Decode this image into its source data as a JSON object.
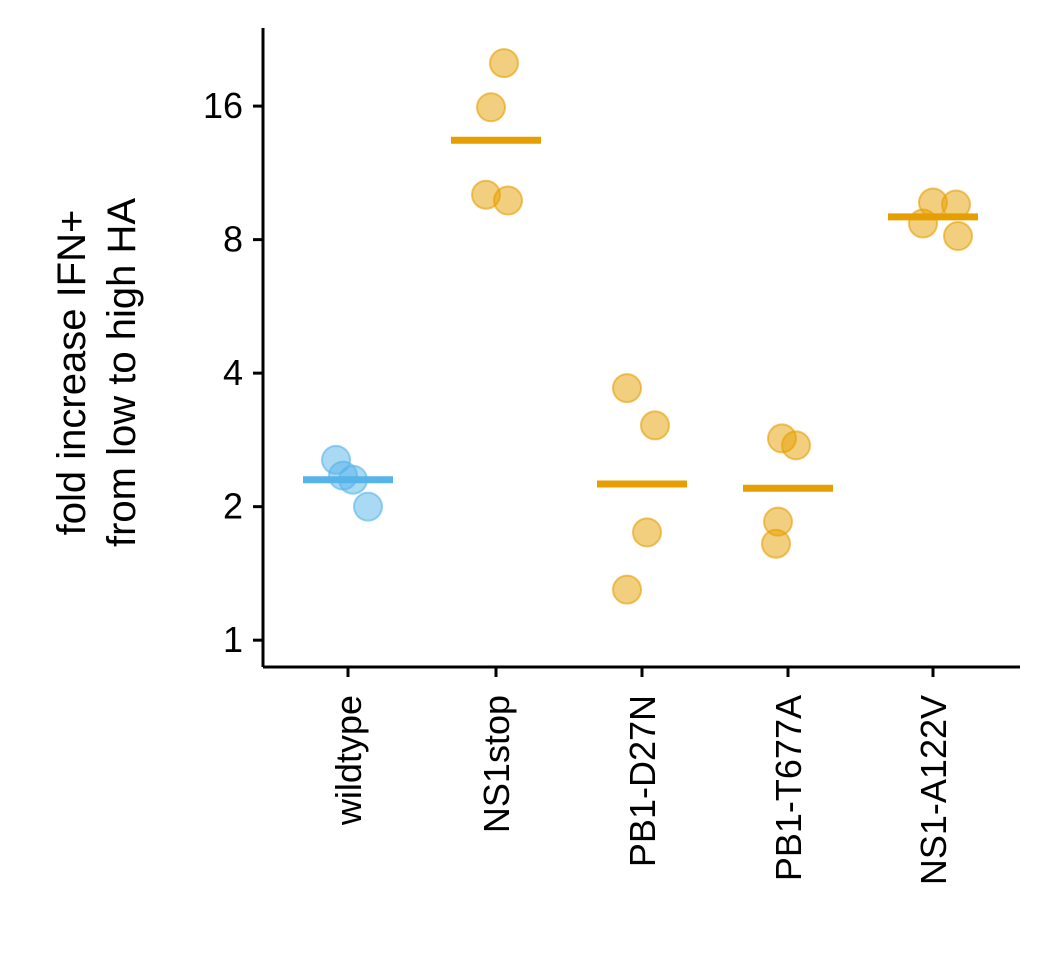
{
  "chart_data": {
    "type": "scatter",
    "title": "",
    "ylabel_lines": [
      "fold increase IFN+",
      "from low to high HA"
    ],
    "xlabel": "",
    "yscale": "log2",
    "ylim": [
      0.87,
      24
    ],
    "yticks": [
      1,
      2,
      4,
      8,
      16
    ],
    "ytick_labels": [
      "1",
      "2",
      "4",
      "8",
      "16"
    ],
    "grid": false,
    "legend": "none",
    "categories": [
      "wildtype",
      "NS1stop",
      "PB1-D27N",
      "PB1-T677A",
      "NS1-A122V"
    ],
    "groups": [
      {
        "category": "wildtype",
        "color": "#56B4E9",
        "points": [
          2.55,
          2.35,
          2.3,
          2.0
        ],
        "mean": 2.3
      },
      {
        "category": "NS1stop",
        "color": "#E69F00",
        "points": [
          20.0,
          15.9,
          10.1,
          9.8
        ],
        "mean": 13.4
      },
      {
        "category": "PB1-D27N",
        "color": "#E69F00",
        "points": [
          3.7,
          3.05,
          1.75,
          1.3
        ],
        "mean": 2.25
      },
      {
        "category": "PB1-T677A",
        "color": "#E69F00",
        "points": [
          2.85,
          2.75,
          1.85,
          1.65
        ],
        "mean": 2.2
      },
      {
        "category": "NS1-A122V",
        "color": "#E69F00",
        "points": [
          9.7,
          9.6,
          8.7,
          8.15
        ],
        "mean": 9.0
      }
    ]
  }
}
